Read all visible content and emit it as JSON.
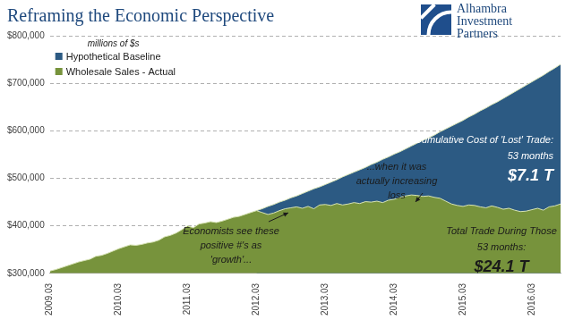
{
  "logo": [
    "Alhambra",
    "Investment",
    "Partners"
  ],
  "chart_data": {
    "type": "area",
    "title": "Reframing the Economic Perspective",
    "ylabel": "millions of $s",
    "legend": "upper left",
    "grid": true,
    "categories": [
      "2009.03",
      null,
      null,
      null,
      null,
      null,
      null,
      null,
      null,
      null,
      null,
      null,
      "2010.03",
      null,
      null,
      null,
      null,
      null,
      null,
      null,
      null,
      null,
      null,
      null,
      "2011.03",
      null,
      null,
      null,
      null,
      null,
      null,
      null,
      null,
      null,
      null,
      null,
      "2012.03",
      null,
      null,
      null,
      null,
      null,
      null,
      null,
      null,
      null,
      null,
      null,
      "2013.03",
      null,
      null,
      null,
      null,
      null,
      null,
      null,
      null,
      null,
      null,
      null,
      "2014.03",
      null,
      null,
      null,
      null,
      null,
      null,
      null,
      null,
      null,
      null,
      null,
      "2015.03",
      null,
      null,
      null,
      null,
      null,
      null,
      null,
      null,
      null,
      null,
      null,
      "2016.03",
      null,
      null,
      null,
      null,
      null
    ],
    "series": [
      {
        "name": "Hypothetical Baseline",
        "color": "#2c5a83",
        "values": [
          null,
          null,
          null,
          null,
          null,
          null,
          null,
          null,
          null,
          null,
          null,
          null,
          null,
          null,
          null,
          null,
          null,
          null,
          null,
          null,
          null,
          null,
          null,
          null,
          null,
          null,
          null,
          null,
          null,
          null,
          null,
          null,
          null,
          null,
          null,
          null,
          432000,
          436000,
          441000,
          445000,
          450000,
          454000,
          459000,
          463000,
          468000,
          473000,
          478000,
          482000,
          487000,
          492000,
          497000,
          503000,
          508000,
          513000,
          518000,
          523000,
          529000,
          534000,
          540000,
          545000,
          551000,
          556000,
          562000,
          568000,
          574000,
          580000,
          585000,
          591000,
          598000,
          604000,
          610000,
          616000,
          622000,
          629000,
          635000,
          642000,
          648000,
          655000,
          661000,
          668000,
          675000,
          682000,
          689000,
          696000,
          703000,
          710000,
          717000,
          725000,
          732000,
          740000
        ]
      },
      {
        "name": "Wholesale Sales - Actual",
        "color": "#77933c",
        "values": [
          305000,
          308000,
          312000,
          316000,
          320000,
          324000,
          327000,
          330000,
          336000,
          338000,
          342000,
          347000,
          352000,
          356000,
          360000,
          359000,
          361000,
          364000,
          366000,
          370000,
          377000,
          380000,
          385000,
          392000,
          400000,
          396000,
          404000,
          406000,
          409000,
          407000,
          410000,
          414000,
          418000,
          420000,
          424000,
          428000,
          432000,
          428000,
          424000,
          427000,
          432000,
          436000,
          438000,
          440000,
          437000,
          441000,
          436000,
          444000,
          445000,
          443000,
          447000,
          444000,
          446000,
          449000,
          447000,
          451000,
          450000,
          452000,
          449000,
          454000,
          456000,
          460000,
          463000,
          465000,
          464000,
          462000,
          463000,
          460000,
          458000,
          452000,
          446000,
          443000,
          441000,
          444000,
          443000,
          440000,
          438000,
          442000,
          439000,
          435000,
          437000,
          433000,
          430000,
          431000,
          434000,
          437000,
          433000,
          440000,
          442000,
          446000
        ]
      }
    ],
    "ylim": [
      300000,
      800000
    ],
    "yticks": [
      {
        "value": 300000,
        "label": "$300,000"
      },
      {
        "value": 400000,
        "label": "$400,000"
      },
      {
        "value": 500000,
        "label": "$500,000"
      },
      {
        "value": 600000,
        "label": "$600,000"
      },
      {
        "value": 700000,
        "label": "$700,000"
      },
      {
        "value": 800000,
        "label": "$800,000"
      }
    ],
    "annotations": [
      {
        "text": [
          "Economists see these",
          "positive #'s as",
          "'growth'..."
        ]
      },
      {
        "text": [
          "...when it was",
          "actually increasing",
          "loss"
        ]
      },
      {
        "text": [
          "Cumulative Cost of 'Lost' Trade:",
          "53 months",
          "$7.1 T"
        ]
      },
      {
        "text": [
          "Total Trade During Those",
          "53 months:",
          "$24.1 T"
        ]
      }
    ]
  }
}
